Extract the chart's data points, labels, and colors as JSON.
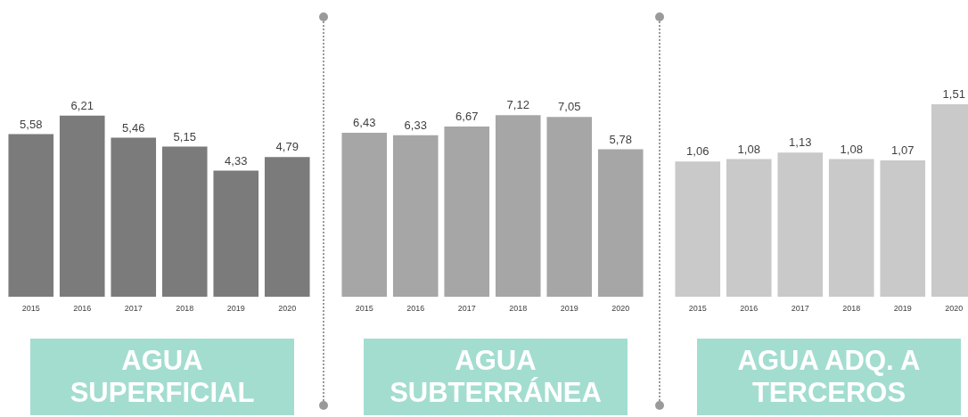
{
  "chart_data": [
    {
      "type": "bar",
      "title": "AGUA SUPERFICIAL",
      "categories": [
        "2015",
        "2016",
        "2017",
        "2018",
        "2019",
        "2020"
      ],
      "values": [
        5.58,
        6.21,
        5.46,
        5.15,
        4.33,
        4.79
      ],
      "value_labels": [
        "5,58",
        "6,21",
        "5,46",
        "5,15",
        "4,33",
        "4,79"
      ],
      "color": "#7b7b7b",
      "grid": false,
      "legend": false,
      "tick_labels": "x"
    },
    {
      "type": "bar",
      "title": "AGUA SUBTERRÁNEA",
      "categories": [
        "2015",
        "2016",
        "2017",
        "2018",
        "2019",
        "2020"
      ],
      "values": [
        6.43,
        6.33,
        6.67,
        7.12,
        7.05,
        5.78
      ],
      "value_labels": [
        "6,43",
        "6,33",
        "6,67",
        "7,12",
        "7,05",
        "5,78"
      ],
      "color": "#a6a6a6",
      "grid": false,
      "legend": false,
      "tick_labels": "x"
    },
    {
      "type": "bar",
      "title": "AGUA ADQ. A TERCEROS",
      "categories": [
        "2015",
        "2016",
        "2017",
        "2018",
        "2019",
        "2020"
      ],
      "values": [
        1.06,
        1.08,
        1.13,
        1.08,
        1.07,
        1.51
      ],
      "value_labels": [
        "1,06",
        "1,08",
        "1,13",
        "1,08",
        "1,07",
        "1,51"
      ],
      "color": "#c9c9c9",
      "grid": false,
      "legend": false,
      "tick_labels": "x"
    }
  ]
}
